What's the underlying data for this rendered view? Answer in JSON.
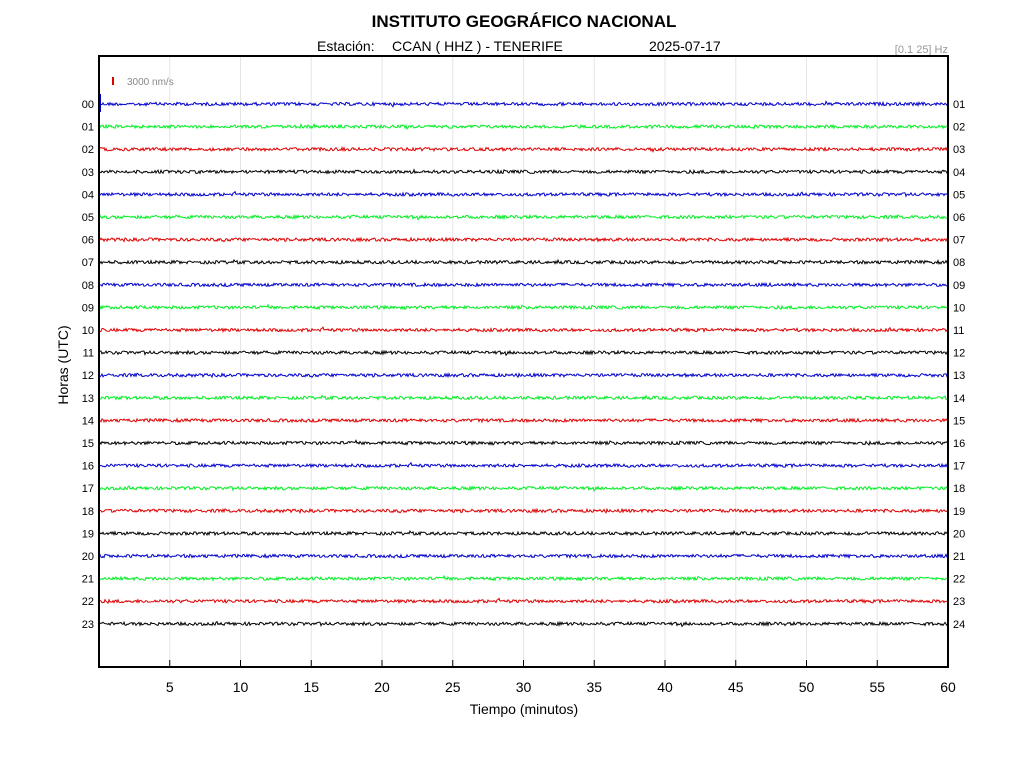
{
  "chart_data": {
    "type": "line",
    "title": "INSTITUTO GEOGRÁFICO NACIONAL",
    "subtitle": {
      "station_prefix": "Estación:",
      "station": "CCAN ( HHZ ) - TENERIFE",
      "date": "2025-07-17"
    },
    "filter": "[0.1 25] Hz",
    "scale_label": "3000 nm/s",
    "xlabel": "Tiempo (minutos)",
    "ylabel": "Horas (UTC)",
    "xlim": [
      0,
      60
    ],
    "x_ticks": [
      5,
      10,
      15,
      20,
      25,
      30,
      35,
      40,
      45,
      50,
      55,
      60
    ],
    "left_labels": [
      "00",
      "01",
      "02",
      "03",
      "04",
      "05",
      "06",
      "07",
      "08",
      "09",
      "10",
      "11",
      "12",
      "13",
      "14",
      "15",
      "16",
      "17",
      "18",
      "19",
      "20",
      "21",
      "22",
      "23"
    ],
    "right_labels": [
      "01",
      "02",
      "03",
      "04",
      "05",
      "06",
      "07",
      "08",
      "09",
      "10",
      "11",
      "12",
      "13",
      "14",
      "15",
      "16",
      "17",
      "18",
      "19",
      "20",
      "21",
      "22",
      "23",
      "24"
    ],
    "trace_colors": [
      "#0000cc",
      "#00ee22",
      "#dd0000",
      "#000000"
    ],
    "scale_color": "#dd0000",
    "grid": true
  }
}
